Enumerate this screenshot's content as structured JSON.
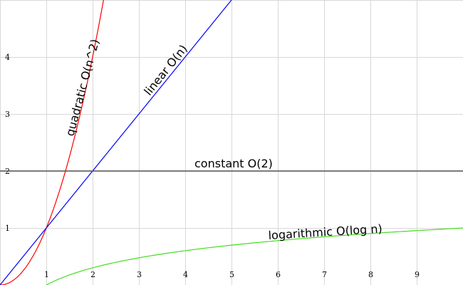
{
  "chart_data": {
    "type": "line",
    "xlim": [
      0,
      10
    ],
    "ylim": [
      0,
      5
    ],
    "x_ticks": [
      "1",
      "2",
      "3",
      "4",
      "5",
      "6",
      "7",
      "8",
      "9"
    ],
    "y_ticks": [
      "1",
      "2",
      "3",
      "4"
    ],
    "grid": true,
    "series": [
      {
        "name": "quadratic O(n^2)",
        "function": "n^2",
        "x_range": [
          0,
          2.24
        ],
        "color": "#ff0000"
      },
      {
        "name": "linear O(n)",
        "function": "n",
        "x_range": [
          0,
          5
        ],
        "color": "#0000ff"
      },
      {
        "name": "constant O(2)",
        "function": "2",
        "x_range": [
          0,
          10
        ],
        "color": "#555555"
      },
      {
        "name": "logarithmic O(log n)",
        "function": "log10(n)",
        "x_range": [
          1,
          10
        ],
        "color": "#44dd22"
      }
    ],
    "annotations": [
      {
        "text": "quadratic O(n^2)",
        "series": 0
      },
      {
        "text": "linear O(n)",
        "series": 1
      },
      {
        "text": "constant O(2)",
        "series": 2
      },
      {
        "text": "logarithmic O(log n)",
        "series": 3
      }
    ]
  }
}
